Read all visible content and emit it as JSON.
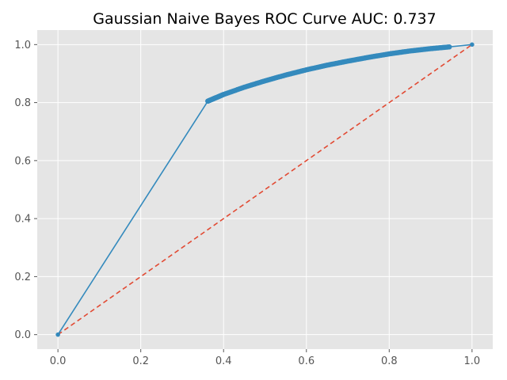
{
  "chart_data": {
    "type": "line",
    "title": "Gaussian Naive Bayes ROC Curve  AUC: 0.737",
    "xlabel": "",
    "ylabel": "",
    "xlim": [
      -0.05,
      1.05
    ],
    "ylim": [
      -0.05,
      1.05
    ],
    "xticks": [
      0.0,
      0.2,
      0.4,
      0.6,
      0.8,
      1.0
    ],
    "yticks": [
      0.0,
      0.2,
      0.4,
      0.6,
      0.8,
      1.0
    ],
    "xtick_labels": [
      "0.0",
      "0.2",
      "0.4",
      "0.6",
      "0.8",
      "1.0"
    ],
    "ytick_labels": [
      "0.0",
      "0.2",
      "0.4",
      "0.6",
      "0.8",
      "1.0"
    ],
    "grid": true,
    "series": [
      {
        "style": "solid line with dot markers",
        "color": "#348ABD",
        "x": [
          0.0,
          0.362,
          0.38,
          0.4,
          0.45,
          0.5,
          0.55,
          0.6,
          0.65,
          0.7,
          0.75,
          0.8,
          0.85,
          0.9,
          0.945,
          1.0
        ],
        "y": [
          0.0,
          0.805,
          0.816,
          0.828,
          0.853,
          0.875,
          0.895,
          0.913,
          0.929,
          0.943,
          0.956,
          0.968,
          0.978,
          0.986,
          0.992,
          1.0
        ]
      },
      {
        "style": "dashed diagonal",
        "color": "#E24A33",
        "x": [
          0.0,
          1.0
        ],
        "y": [
          0.0,
          1.0
        ]
      }
    ]
  }
}
